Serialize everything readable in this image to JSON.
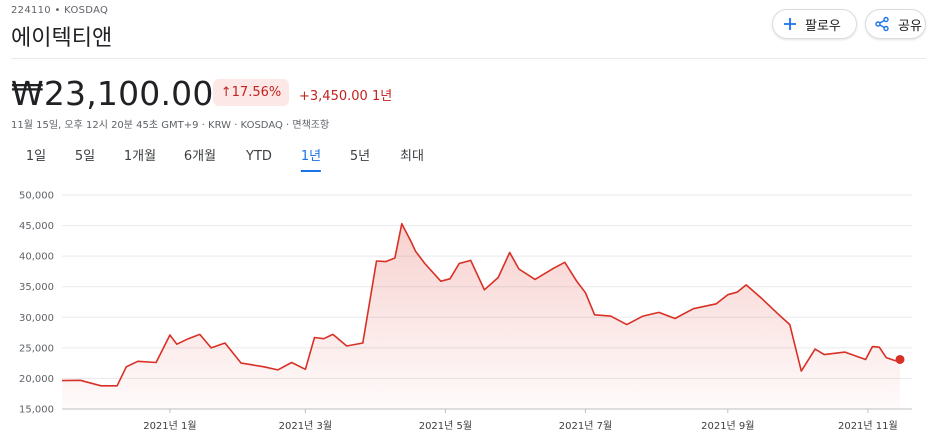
{
  "header": {
    "ticker": "224110 • KOSDAQ",
    "name": "에이텍티앤",
    "follow_label": "팔로우",
    "share_label": "공유"
  },
  "quote": {
    "price": "₩23,100.00",
    "change_percent": "↑17.56%",
    "change_value": "+3,450.00",
    "change_period": "1년",
    "meta": "11월 15일, 오후 12시 20분 45초 GMT+9 · KRW · KOSDAQ · 면책조항"
  },
  "tabs": [
    "1일",
    "5일",
    "1개월",
    "6개월",
    "YTD",
    "1년",
    "5년",
    "최대"
  ],
  "active_tab": "1년",
  "colors": {
    "line": "#d93025",
    "fill": "#fce8e6",
    "accent": "#1a73e8"
  },
  "icons": {
    "follow": "plus-icon",
    "share": "share-icon"
  },
  "chart_data": {
    "type": "area",
    "ylim": [
      15000,
      50000
    ],
    "y_ticks": [
      50000,
      45000,
      40000,
      35000,
      30000,
      25000,
      20000,
      15000
    ],
    "y_tick_labels": [
      "50,000",
      "45,000",
      "40,000",
      "35,000",
      "30,000",
      "25,000",
      "20,000",
      "15,000"
    ],
    "x_tick_labels": [
      "2021년 1월",
      "2021년 3월",
      "2021년 5월",
      "2021년 7월",
      "2021년 9월",
      "2021년 11월"
    ],
    "x_tick_dates": [
      "2021-01-01",
      "2021-03-01",
      "2021-05-01",
      "2021-07-01",
      "2021-09-01",
      "2021-11-01"
    ],
    "x_range": [
      "2020-11-15",
      "2021-11-15"
    ],
    "grid": true,
    "series": [
      {
        "dates": [
          "2020-11-15",
          "2020-11-23",
          "2020-12-02",
          "2020-12-09",
          "2020-12-13",
          "2020-12-18",
          "2020-12-26",
          "2021-01-01",
          "2021-01-04",
          "2021-01-09",
          "2021-01-14",
          "2021-01-19",
          "2021-01-25",
          "2021-02-01",
          "2021-02-11",
          "2021-02-17",
          "2021-02-23",
          "2021-03-01",
          "2021-03-05",
          "2021-03-09",
          "2021-03-13",
          "2021-03-19",
          "2021-03-26",
          "2021-04-01",
          "2021-04-05",
          "2021-04-09",
          "2021-04-12",
          "2021-04-16",
          "2021-04-18",
          "2021-04-22",
          "2021-04-29",
          "2021-05-03",
          "2021-05-07",
          "2021-05-12",
          "2021-05-18",
          "2021-05-24",
          "2021-05-29",
          "2021-06-02",
          "2021-06-09",
          "2021-06-17",
          "2021-06-22",
          "2021-06-27",
          "2021-07-01",
          "2021-07-05",
          "2021-07-12",
          "2021-07-19",
          "2021-07-26",
          "2021-08-02",
          "2021-08-09",
          "2021-08-17",
          "2021-08-27",
          "2021-09-01",
          "2021-09-05",
          "2021-09-09",
          "2021-09-16",
          "2021-09-23",
          "2021-09-28",
          "2021-10-03",
          "2021-10-09",
          "2021-10-13",
          "2021-10-22",
          "2021-10-31",
          "2021-11-03",
          "2021-11-06",
          "2021-11-09",
          "2021-11-13",
          "2021-11-15"
        ],
        "values": [
          19650,
          19700,
          18800,
          18800,
          21900,
          22800,
          22600,
          27100,
          25600,
          26500,
          27200,
          25000,
          25800,
          22500,
          21900,
          21400,
          22600,
          21500,
          26700,
          26500,
          27200,
          25300,
          25800,
          39200,
          39100,
          39700,
          45300,
          42400,
          40800,
          38800,
          35900,
          36300,
          38800,
          39300,
          34500,
          36500,
          40600,
          37900,
          36200,
          38000,
          39000,
          36000,
          34000,
          30400,
          30200,
          28800,
          30200,
          30800,
          29800,
          31400,
          32200,
          33700,
          34100,
          35300,
          33000,
          30500,
          28800,
          21200,
          24800,
          23900,
          24300,
          23100,
          25200,
          25100,
          23400,
          22900,
          23100
        ]
      }
    ]
  }
}
